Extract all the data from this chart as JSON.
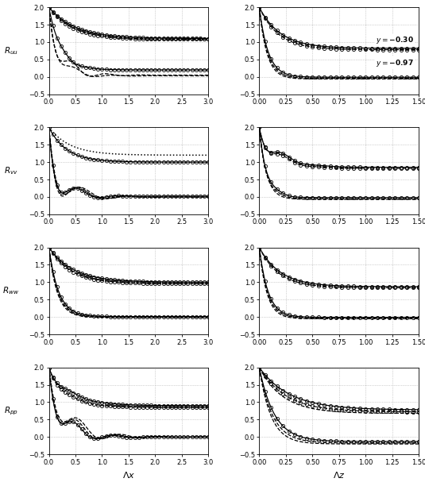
{
  "row_labels": [
    "$R_{uu}$",
    "$R_{vv}$",
    "$R_{ww}$",
    "$R_{pp}$"
  ],
  "xlabel_left": "$\\Lambda x$",
  "xlabel_right": "$\\Lambda z$",
  "xlim_left": [
    0.0,
    3.0
  ],
  "xlim_right": [
    0.0,
    1.5
  ],
  "ylim": [
    -0.5,
    2.0
  ],
  "yticks": [
    -0.5,
    0.0,
    0.5,
    1.0,
    1.5,
    2.0
  ],
  "xticks_left": [
    0.0,
    0.5,
    1.0,
    1.5,
    2.0,
    2.5,
    3.0
  ],
  "xticks_right": [
    0.0,
    0.25,
    0.5,
    0.75,
    1.0,
    1.25,
    1.5
  ]
}
